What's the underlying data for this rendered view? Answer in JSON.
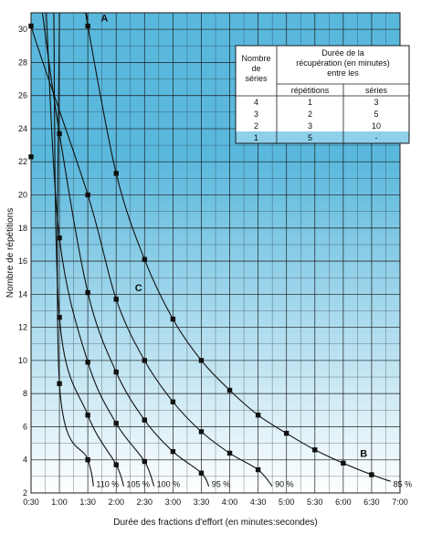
{
  "chart_data": {
    "type": "line",
    "xlabel": "Durée des fractions d'effort (en minutes:secondes)",
    "ylabel": "Nombre de répétitions",
    "xlim": [
      30,
      420
    ],
    "ylim": [
      2,
      31
    ],
    "x_ticks": [
      {
        "v": 30,
        "label": "0:30"
      },
      {
        "v": 60,
        "label": "1:00"
      },
      {
        "v": 90,
        "label": "1:30"
      },
      {
        "v": 120,
        "label": "2:00"
      },
      {
        "v": 150,
        "label": "2:30"
      },
      {
        "v": 180,
        "label": "3:00"
      },
      {
        "v": 210,
        "label": "3:30"
      },
      {
        "v": 240,
        "label": "4:00"
      },
      {
        "v": 270,
        "label": "4:30"
      },
      {
        "v": 300,
        "label": "5:00"
      },
      {
        "v": 330,
        "label": "5:30"
      },
      {
        "v": 360,
        "label": "6:00"
      },
      {
        "v": 390,
        "label": "6:30"
      },
      {
        "v": 420,
        "label": "7:00"
      }
    ],
    "y_ticks": [
      2,
      4,
      6,
      8,
      10,
      12,
      14,
      16,
      18,
      20,
      22,
      24,
      26,
      28,
      30
    ],
    "grid": true,
    "series": [
      {
        "name": "110 %",
        "points": [
          [
            60,
            8.6
          ],
          [
            90,
            4.0
          ]
        ]
      },
      {
        "name": "105 %",
        "points": [
          [
            60,
            12.6
          ],
          [
            90,
            6.7
          ],
          [
            120,
            3.7
          ]
        ]
      },
      {
        "name": "100 %",
        "points": [
          [
            60,
            17.4
          ],
          [
            90,
            9.9
          ],
          [
            120,
            6.2
          ],
          [
            150,
            3.9
          ]
        ]
      },
      {
        "name": "95 %",
        "points": [
          [
            30,
            22.3
          ],
          [
            60,
            23.7
          ],
          [
            90,
            14.1
          ],
          [
            120,
            9.3
          ],
          [
            150,
            6.4
          ],
          [
            180,
            4.5
          ],
          [
            210,
            3.2
          ]
        ]
      },
      {
        "name": "90 %",
        "points": [
          [
            30,
            30.2
          ],
          [
            90,
            20.0
          ],
          [
            120,
            13.7
          ],
          [
            150,
            10.0
          ],
          [
            180,
            7.5
          ],
          [
            210,
            5.7
          ],
          [
            240,
            4.4
          ],
          [
            270,
            3.4
          ]
        ]
      },
      {
        "name": "85 %",
        "points": [
          [
            90,
            30.2
          ],
          [
            120,
            21.3
          ],
          [
            150,
            16.1
          ],
          [
            180,
            12.5
          ],
          [
            210,
            10.0
          ],
          [
            240,
            8.2
          ],
          [
            270,
            6.7
          ],
          [
            300,
            5.6
          ],
          [
            330,
            4.6
          ],
          [
            360,
            3.8
          ],
          [
            390,
            3.1
          ]
        ]
      }
    ],
    "curves": [
      {
        "start": [
          60,
          31
        ],
        "end": [
          96,
          2.4
        ]
      },
      {
        "start": [
          54,
          31
        ],
        "end": [
          128,
          2.4
        ]
      },
      {
        "start": [
          46,
          31
        ],
        "end": [
          160,
          2.4
        ]
      },
      {
        "start": [
          42,
          31
        ],
        "end": [
          218,
          2.4
        ]
      },
      {
        "start": [
          34,
          31
        ],
        "end": [
          285,
          2.4
        ]
      },
      {
        "start": [
          90,
          30.6
        ],
        "end": [
          410,
          2.7
        ]
      }
    ],
    "annotations": [
      {
        "text": "A",
        "x": 97,
        "y": 30.7
      },
      {
        "text": "B",
        "x": 371,
        "y": 4.4
      },
      {
        "text": "C",
        "x": 133,
        "y": 14.4
      }
    ],
    "table": {
      "header_col1": [
        "Nombre",
        "de",
        "séries"
      ],
      "header_main": [
        "Durée de la",
        "récupération (en minutes)",
        "entre les"
      ],
      "sub_headers": [
        "répétitions",
        "séries"
      ],
      "rows": [
        [
          "4",
          "1",
          "3"
        ],
        [
          "3",
          "2",
          "5"
        ],
        [
          "2",
          "3",
          "10"
        ],
        [
          "1",
          "5",
          "-"
        ]
      ]
    },
    "colors": {
      "band_dark": "#5ab8dd",
      "band_light": "#ffffff",
      "grid": "#1a1a1a",
      "curve": "#111111",
      "marker": "#111111",
      "table_highlight": "#8fd0ea"
    }
  }
}
